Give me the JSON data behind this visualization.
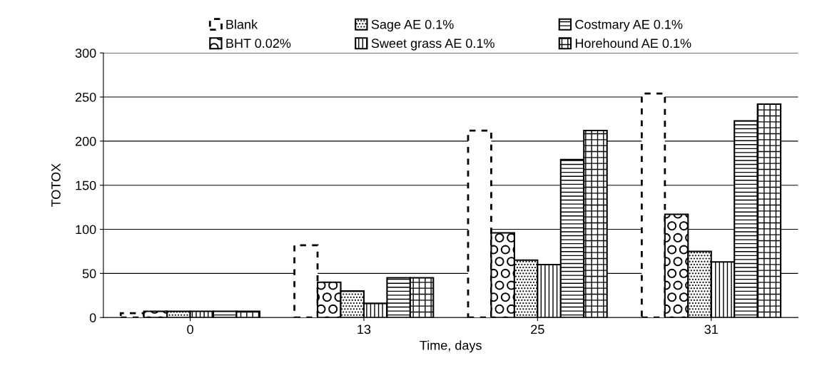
{
  "chart_data": {
    "type": "bar",
    "xlabel": "Time, days",
    "ylabel": "TOTOX",
    "categories": [
      "0",
      "13",
      "25",
      "31"
    ],
    "series": [
      {
        "name": "Blank",
        "color": "#000000",
        "line_style": "dashed",
        "values": [
          5,
          82,
          212,
          254
        ]
      },
      {
        "name": "BHT 0.02%",
        "color": "#000000",
        "values": [
          7,
          40,
          96,
          117
        ]
      },
      {
        "name": "Sage AE 0.1%",
        "color": "#000000",
        "values": [
          7,
          30,
          65,
          75
        ]
      },
      {
        "name": "Sweet grass AE 0.1%",
        "color": "#000000",
        "values": [
          7,
          16,
          60,
          63
        ]
      },
      {
        "name": "Costmary AE 0.1%",
        "color": "#000000",
        "values": [
          7,
          45,
          179,
          223
        ]
      },
      {
        "name": "Horehound AE 0.1%",
        "color": "#000000",
        "values": [
          7,
          45,
          212,
          242
        ]
      }
    ],
    "ylim": [
      0,
      300
    ],
    "yticks": [
      0,
      50,
      100,
      150,
      200,
      250,
      300
    ],
    "grid": "y",
    "legend": "top"
  }
}
